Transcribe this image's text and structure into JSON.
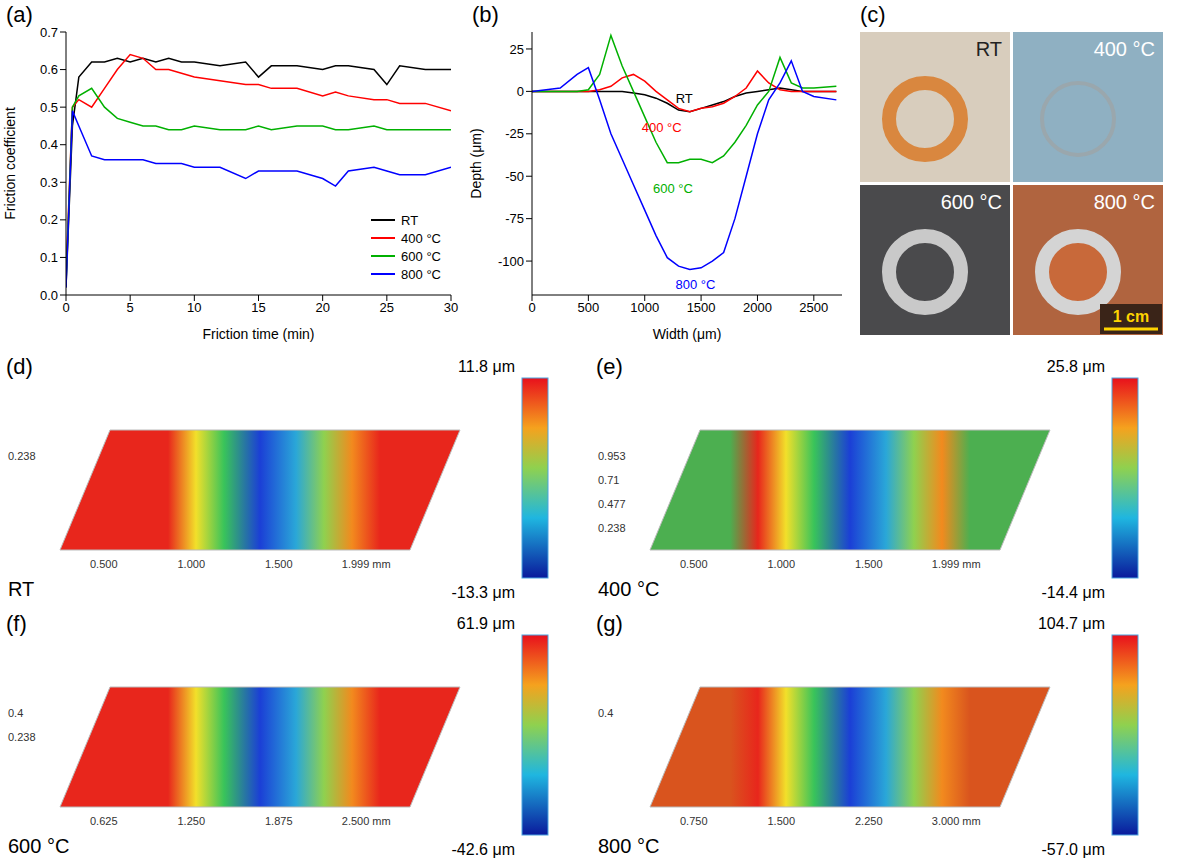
{
  "chart_data": [
    {
      "panel": "(a)",
      "type": "line",
      "x_label": "Friction time (min)",
      "y_label": "Friction coefficient",
      "x": [
        0,
        0.5,
        1,
        2,
        3,
        4,
        5,
        6,
        7,
        8,
        9,
        10,
        12,
        14,
        15,
        16,
        18,
        20,
        21,
        22,
        24,
        25,
        26,
        28,
        30
      ],
      "xlim": [
        0,
        30
      ],
      "xticks": [
        0,
        5,
        10,
        15,
        20,
        25,
        30
      ],
      "ylim": [
        0,
        0.7
      ],
      "yticks": [
        {
          "value": 0,
          "label": "0.0"
        },
        {
          "value": 0.1,
          "label": "0.1"
        },
        {
          "value": 0.2,
          "label": "0.2"
        },
        {
          "value": 0.3,
          "label": "0.3"
        },
        {
          "value": 0.4,
          "label": "0.4"
        },
        {
          "value": 0.5,
          "label": "0.5"
        },
        {
          "value": 0.6,
          "label": "0.6"
        },
        {
          "value": 0.7,
          "label": "0.7"
        }
      ],
      "legend": "lower right",
      "series": [
        {
          "name": "RT",
          "color": "#000000",
          "values": [
            0.02,
            0.45,
            0.58,
            0.62,
            0.62,
            0.63,
            0.62,
            0.63,
            0.62,
            0.63,
            0.62,
            0.62,
            0.61,
            0.62,
            0.58,
            0.61,
            0.61,
            0.6,
            0.61,
            0.61,
            0.6,
            0.56,
            0.61,
            0.6,
            0.6
          ]
        },
        {
          "name": "400 °C",
          "color": "#ff0000",
          "values": [
            0.05,
            0.5,
            0.52,
            0.5,
            0.55,
            0.6,
            0.64,
            0.63,
            0.6,
            0.6,
            0.59,
            0.58,
            0.57,
            0.56,
            0.56,
            0.55,
            0.55,
            0.53,
            0.54,
            0.53,
            0.52,
            0.52,
            0.51,
            0.51,
            0.49
          ]
        },
        {
          "name": "600 °C",
          "color": "#00b000",
          "values": [
            0.03,
            0.5,
            0.53,
            0.55,
            0.5,
            0.47,
            0.46,
            0.45,
            0.45,
            0.44,
            0.44,
            0.45,
            0.44,
            0.44,
            0.45,
            0.44,
            0.45,
            0.45,
            0.44,
            0.44,
            0.45,
            0.44,
            0.44,
            0.44,
            0.44
          ]
        },
        {
          "name": "800 °C",
          "color": "#0000ff",
          "values": [
            0.02,
            0.49,
            0.45,
            0.37,
            0.36,
            0.36,
            0.36,
            0.36,
            0.35,
            0.35,
            0.35,
            0.34,
            0.34,
            0.31,
            0.33,
            0.33,
            0.33,
            0.31,
            0.29,
            0.33,
            0.34,
            0.33,
            0.32,
            0.32,
            0.34
          ]
        }
      ]
    },
    {
      "panel": "(b)",
      "type": "line",
      "x_label": "Width (μm)",
      "y_label": "Depth (μm)",
      "x": [
        0,
        250,
        400,
        500,
        600,
        700,
        800,
        900,
        1000,
        1100,
        1200,
        1300,
        1400,
        1500,
        1600,
        1700,
        1800,
        1900,
        2000,
        2100,
        2200,
        2300,
        2400,
        2500,
        2700
      ],
      "xlim": [
        0,
        2750
      ],
      "xticks": [
        0,
        500,
        1000,
        1500,
        2000,
        2500
      ],
      "ylim": [
        -120,
        35
      ],
      "yticks": [
        -100,
        -75,
        -50,
        -25,
        0,
        25
      ],
      "series": [
        {
          "name": "RT",
          "color": "#000000",
          "values": [
            0,
            0,
            0,
            0,
            0,
            0,
            0,
            -1,
            -2,
            -4,
            -7,
            -11,
            -12,
            -10,
            -8,
            -6,
            -3,
            -1,
            0,
            1,
            2,
            1,
            0,
            0,
            0
          ]
        },
        {
          "name": "400 °C",
          "color": "#ff0000",
          "values": [
            0,
            0,
            0,
            0,
            1,
            3,
            8,
            10,
            6,
            0,
            -5,
            -10,
            -12,
            -10,
            -9,
            -7,
            -3,
            2,
            12,
            5,
            1,
            0,
            0,
            0,
            0
          ]
        },
        {
          "name": "600 °C",
          "color": "#00b000",
          "values": [
            0,
            0,
            0,
            1,
            10,
            33,
            15,
            0,
            -15,
            -30,
            -42,
            -42,
            -40,
            -40,
            -42,
            -38,
            -30,
            -20,
            -8,
            0,
            20,
            5,
            2,
            2,
            3
          ]
        },
        {
          "name": "800 °C",
          "color": "#0000ff",
          "values": [
            0,
            2,
            10,
            14,
            -5,
            -25,
            -40,
            -55,
            -70,
            -85,
            -98,
            -103,
            -105,
            -104,
            -100,
            -95,
            -75,
            -50,
            -25,
            -5,
            5,
            18,
            0,
            -3,
            -5
          ]
        }
      ]
    }
  ],
  "photos": {
    "panel": "(c)",
    "items": [
      {
        "label": "RT",
        "color": "#d8cdbd"
      },
      {
        "label": "400 °C",
        "color": "#8fb0c2"
      },
      {
        "label": "600 °C",
        "color": "#4a4a4c"
      },
      {
        "label": "800 °C",
        "color": "#b0643f"
      }
    ],
    "scale_bar": "1 cm"
  },
  "surfaces": [
    {
      "panel": "(d)",
      "label": "RT",
      "color": "#e8261c",
      "x_tick_labels": [
        "0.500",
        "1.000",
        "1.500",
        "1.999 mm"
      ],
      "y_tick_labels": [
        "0.238"
      ],
      "colorbar": {
        "max": {
          "value": 11.8,
          "label": "11.8 μm"
        },
        "min": {
          "value": -13.3,
          "label": "-13.3 μm"
        }
      }
    },
    {
      "panel": "(e)",
      "label": "400 °C",
      "color": "#4caf50",
      "x_tick_labels": [
        "0.500",
        "1.000",
        "1.500",
        "1.999 mm"
      ],
      "y_tick_labels": [
        "0.953",
        "0.71",
        "0.477",
        "0.238"
      ],
      "colorbar": {
        "max": {
          "value": 25.8,
          "label": "25.8 μm"
        },
        "min": {
          "value": -14.4,
          "label": "-14.4 μm"
        }
      }
    },
    {
      "panel": "(f)",
      "label": "600 °C",
      "color": "#e8261c",
      "x_tick_labels": [
        "0.625",
        "1.250",
        "1.875",
        "2.500 mm"
      ],
      "y_tick_labels": [
        "0.4",
        "0.238"
      ],
      "colorbar": {
        "max": {
          "value": 61.9,
          "label": "61.9 μm"
        },
        "min": {
          "value": -42.6,
          "label": "-42.6 μm"
        }
      }
    },
    {
      "panel": "(g)",
      "label": "800 °C",
      "color": "#d9541e",
      "x_tick_labels": [
        "0.750",
        "1.500",
        "2.250",
        "3.000 mm"
      ],
      "y_tick_labels": [
        "0.4"
      ],
      "colorbar": {
        "max": {
          "value": 104.7,
          "label": "104.7 μm"
        },
        "min": {
          "value": -57.0,
          "label": "-57.0 μm"
        }
      }
    }
  ]
}
